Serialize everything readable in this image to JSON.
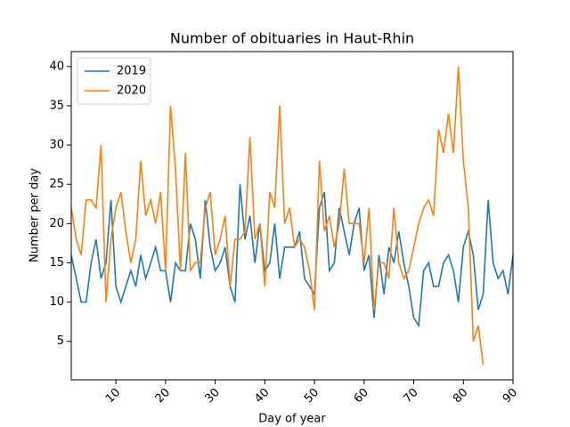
{
  "chart_data": {
    "type": "line",
    "title": "Number of obituaries in Haut-Rhin",
    "x_label": "Day of year",
    "y_label": "Number per day",
    "x": [
      1,
      2,
      3,
      4,
      5,
      6,
      7,
      8,
      9,
      10,
      11,
      12,
      13,
      14,
      15,
      16,
      17,
      18,
      19,
      20,
      21,
      22,
      23,
      24,
      25,
      26,
      27,
      28,
      29,
      30,
      31,
      32,
      33,
      34,
      35,
      36,
      37,
      38,
      39,
      40,
      41,
      42,
      43,
      44,
      45,
      46,
      47,
      48,
      49,
      50,
      51,
      52,
      53,
      54,
      55,
      56,
      57,
      58,
      59,
      60,
      61,
      62,
      63,
      64,
      65,
      66,
      67,
      68,
      69,
      70,
      71,
      72,
      73,
      74,
      75,
      76,
      77,
      78,
      79,
      80,
      81,
      82,
      83,
      84,
      85,
      86,
      87,
      88,
      89,
      90
    ],
    "series": [
      {
        "name": "2019",
        "color": "#1f77b4",
        "values": [
          16,
          13,
          10,
          10,
          15,
          18,
          13,
          15,
          23,
          12,
          10,
          12,
          14,
          12,
          16,
          13,
          15,
          17,
          14,
          14,
          10,
          15,
          14,
          14,
          20,
          18,
          13,
          23,
          17,
          14,
          15,
          17,
          12,
          10,
          25,
          18,
          21,
          15,
          20,
          14,
          15,
          20,
          13,
          17,
          17,
          17,
          19,
          13,
          12,
          11,
          22,
          24,
          14,
          15,
          22,
          19,
          16,
          20,
          22,
          14,
          16,
          8,
          16,
          11,
          17,
          15,
          19,
          15,
          12,
          8,
          7,
          14,
          15,
          12,
          12,
          15,
          16,
          14,
          10,
          17,
          19,
          16,
          9,
          11,
          23,
          15,
          13,
          14,
          11,
          16
        ]
      },
      {
        "name": "2020",
        "color": "#ff7f0e",
        "values": [
          22,
          18,
          16,
          23,
          23,
          22,
          30,
          10,
          18,
          22,
          24,
          19,
          15,
          18,
          28,
          21,
          23,
          20,
          24,
          14,
          35,
          27,
          14,
          29,
          14,
          15,
          15,
          22,
          24,
          16,
          18,
          21,
          12,
          18,
          18,
          19,
          31,
          18,
          20,
          12,
          24,
          22,
          35,
          20,
          22,
          17,
          18,
          17,
          14,
          9,
          28,
          19,
          21,
          17,
          20,
          27,
          20,
          20,
          20,
          15,
          22,
          9,
          15,
          15,
          13,
          22,
          15,
          13,
          14,
          17,
          20,
          22,
          23,
          21,
          32,
          29,
          34,
          29,
          40,
          28,
          22,
          5,
          7,
          2,
          null,
          null,
          null,
          null,
          null,
          null
        ]
      }
    ],
    "xlim": [
      1,
      90
    ],
    "xticks": [
      10,
      20,
      30,
      40,
      50,
      60,
      70,
      80,
      90
    ],
    "ylim": [
      0.1,
      41.9
    ],
    "yticks": [
      5,
      10,
      15,
      20,
      25,
      30,
      35,
      40
    ],
    "legend": "upper left",
    "grid": false
  }
}
